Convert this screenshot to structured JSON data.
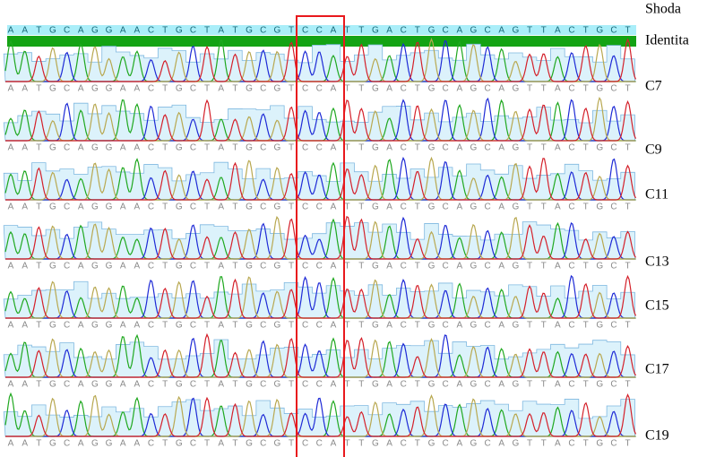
{
  "consensus_label": "Shoda",
  "identity_label": "Identita",
  "sequence": [
    "A",
    "A",
    "T",
    "G",
    "C",
    "A",
    "G",
    "G",
    "A",
    "A",
    "C",
    "T",
    "G",
    "C",
    "T",
    "A",
    "T",
    "G",
    "C",
    "G",
    "T",
    "C",
    "C",
    "A",
    "T",
    "T",
    "G",
    "A",
    "C",
    "T",
    "G",
    "C",
    "A",
    "G",
    "C",
    "A",
    "G",
    "T",
    "T",
    "A",
    "C",
    "T",
    "G",
    "C",
    "T"
  ],
  "tracks": [
    {
      "label": "C7"
    },
    {
      "label": "C9"
    },
    {
      "label": "C11"
    },
    {
      "label": "C13"
    },
    {
      "label": "C15"
    },
    {
      "label": "C17"
    },
    {
      "label": "C19"
    }
  ]
}
